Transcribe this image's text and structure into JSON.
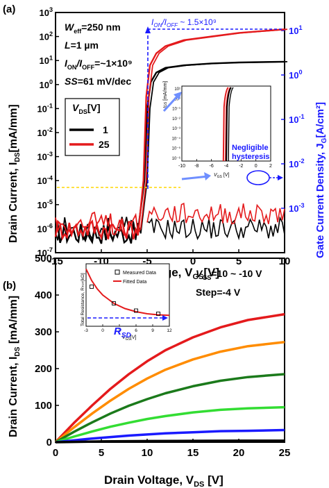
{
  "chart_data": [
    {
      "panel_label": "(a)",
      "type": "line",
      "xlabel": "Gate Voltage, V",
      "xlabel_sub": "GS",
      "xlabel_unit": "[V]",
      "xlim": [
        -15,
        10
      ],
      "x_ticks": [
        "-15",
        "-10",
        "-5",
        "0",
        "5",
        "10"
      ],
      "ylabel_left": "Drain Current, I",
      "ylabel_left_sub": "DS",
      "ylabel_left_unit": "[mA/mm]",
      "ylim_left_log": [
        -7,
        3
      ],
      "y_ticks_left": [
        "10^3",
        "10^2",
        "10^1",
        "10^0",
        "10^-1",
        "10^-2",
        "10^-3",
        "10^-4",
        "10^-5",
        "10^-6",
        "10^-7"
      ],
      "ylabel_right": "Gate Current Density, J",
      "ylabel_right_sub": "G",
      "ylabel_right_unit": "[A/cm²]",
      "y_ticks_right": [
        "10^1",
        "10^0",
        "10^-1",
        "10^-2",
        "10^-3"
      ],
      "legend_title": "V",
      "legend_title_sub": "DS",
      "legend_title_unit": "[V]",
      "series": [
        {
          "name": "1",
          "color": "#000000",
          "x": [
            -15,
            -6,
            -5.3,
            -5.0,
            -4.6,
            -4.0,
            -3,
            -1,
            2,
            5,
            10
          ],
          "y_log10": [
            -6.2,
            -6.2,
            -4.0,
            -1.0,
            0.1,
            0.5,
            0.7,
            0.8,
            0.88,
            0.92,
            0.95
          ]
        },
        {
          "name": "25",
          "color": "#e41a1c",
          "x": [
            -15,
            -6,
            -5.4,
            -5.1,
            -4.7,
            -4.0,
            -3,
            -1,
            2,
            5,
            10
          ],
          "y_log10": [
            -6.0,
            -6.0,
            -4.0,
            -0.5,
            0.8,
            1.3,
            1.6,
            1.85,
            2.0,
            2.15,
            2.3
          ]
        }
      ],
      "annotations": {
        "weff": "W",
        "weff_sub": "eff",
        "weff_val": "=250 nm",
        "L": "L",
        "L_val": "=1 µm",
        "ion": "I",
        "ion_sub1": "ON",
        "ion_mid": "/I",
        "ion_sub2": "OFF",
        "ion_val": "=~1×10⁹",
        "ss": "SS",
        "ss_val": "=61 mV/dec",
        "ratio_top_1": "I",
        "ratio_top_sub1": "ON",
        "ratio_top_2": "/I",
        "ratio_top_sub2": "OFF",
        "ratio_top_val": " ~ 1.5×10⁹",
        "negligible_1": "Negligible",
        "negligible_2": "hysteresis"
      },
      "inset": {
        "xlim": [
          -10,
          2
        ],
        "x_ticks": [
          "-10",
          "-8",
          "-6",
          "-4",
          "-2",
          "0",
          "2"
        ],
        "y_ticks": [
          "10¹",
          "10⁰",
          "10⁻¹",
          "10⁻²",
          "10⁻³",
          "10⁻⁴",
          "10⁻⁵",
          "10⁻⁶"
        ],
        "xlabel": "V",
        "xlabel_sub": "GS",
        "xlabel_unit": " [V]",
        "ylabel": "I",
        "ylabel_sub": "GS",
        "ylabel_unit": " [mA/mm]"
      }
    },
    {
      "panel_label": "(b)",
      "type": "line",
      "xlabel": "Drain Voltage, V",
      "xlabel_sub": "DS",
      "xlabel_unit": " [V]",
      "xlim": [
        0,
        25
      ],
      "x_ticks": [
        "0",
        "5",
        "10",
        "15",
        "20",
        "25"
      ],
      "ylabel": "Drain Current, I",
      "ylabel_sub": "DS",
      "ylabel_unit": " [mA/mm]",
      "ylim": [
        0,
        500
      ],
      "y_ticks": [
        "0",
        "100",
        "200",
        "300",
        "400",
        "500"
      ],
      "annotations": {
        "vgs": "V",
        "vgs_sub": "GS",
        "vgs_val": "=10 ~ -10 V",
        "step": "Step=-4 V"
      },
      "series": [
        {
          "color": "#e41a1c",
          "x": [
            0,
            2,
            4,
            6,
            8,
            10,
            12,
            15,
            18,
            21,
            25
          ],
          "y": [
            0,
            52,
            100,
            145,
            185,
            220,
            250,
            285,
            312,
            332,
            348
          ]
        },
        {
          "color": "#ff8c00",
          "x": [
            0,
            2,
            4,
            6,
            8,
            10,
            12,
            15,
            18,
            21,
            25
          ],
          "y": [
            0,
            40,
            78,
            113,
            145,
            173,
            197,
            225,
            246,
            261,
            272
          ]
        },
        {
          "color": "#1b7a1b",
          "x": [
            0,
            2,
            4,
            6,
            8,
            10,
            12,
            15,
            18,
            21,
            25
          ],
          "y": [
            0,
            28,
            54,
            78,
            99,
            117,
            133,
            152,
            167,
            177,
            185
          ]
        },
        {
          "color": "#33dd33",
          "x": [
            0,
            2,
            4,
            6,
            8,
            10,
            12,
            15,
            18,
            21,
            25
          ],
          "y": [
            0,
            15,
            29,
            42,
            53,
            63,
            71,
            81,
            88,
            92,
            95
          ]
        },
        {
          "color": "#1a1aff",
          "x": [
            0,
            2,
            4,
            6,
            8,
            10,
            12,
            15,
            18,
            21,
            25
          ],
          "y": [
            0,
            5,
            10,
            14,
            18,
            21,
            24,
            27,
            30,
            31,
            33
          ]
        },
        {
          "color": "#000000",
          "x": [
            0,
            5,
            10,
            15,
            20,
            25
          ],
          "y": [
            0,
            2,
            3,
            3.5,
            4,
            4
          ]
        }
      ],
      "inset": {
        "xlabel": "V",
        "xlabel_sub": "GS",
        "xlabel_unit": "[V]",
        "ylabel": "Total Resistance, R",
        "ylabel_sub": "TOT",
        "ylabel_unit": "[kΩ]",
        "xlim": [
          -3,
          12
        ],
        "x_ticks": [
          "-3",
          "0",
          "3",
          "6",
          "9",
          "12"
        ],
        "legend": [
          "Measured Data",
          "Fitted Data"
        ],
        "rsd_label": "R",
        "rsd_sub": "SD",
        "measured": {
          "x": [
            -2,
            2,
            6,
            10
          ],
          "y": [
            0.78,
            0.62,
            0.55,
            0.52
          ]
        },
        "fitted": {
          "x": [
            -3,
            -2,
            -1,
            0,
            1,
            2,
            4,
            6,
            8,
            10,
            12
          ],
          "y": [
            0.95,
            0.84,
            0.76,
            0.7,
            0.66,
            0.62,
            0.57,
            0.54,
            0.52,
            0.51,
            0.505
          ]
        },
        "rsd_level": 0.48
      }
    }
  ]
}
